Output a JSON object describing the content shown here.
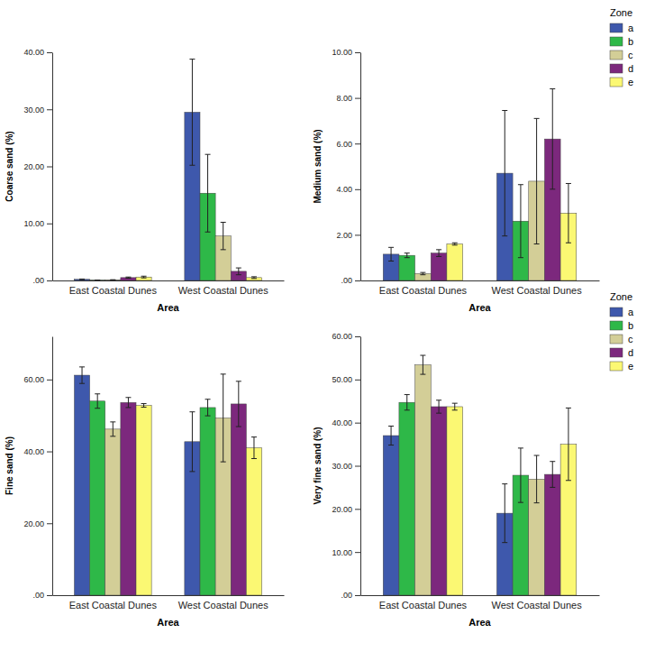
{
  "chart_data": [
    {
      "type": "bar",
      "categories": [
        "East Coastal Dunes",
        "West Coastal Dunes"
      ],
      "x_label": "Area",
      "y_label": "Coarse sand (%)",
      "ylim": [
        0,
        40
      ],
      "yticks": [
        {
          "value": 0,
          "label": ".00"
        },
        {
          "value": 10,
          "label": "10.00"
        },
        {
          "value": 20,
          "label": "20.00"
        },
        {
          "value": 30,
          "label": "30.00"
        },
        {
          "value": 40,
          "label": "40.00"
        }
      ],
      "series": [
        {
          "name": "a",
          "color": "#3e58ac",
          "values": [
            0.2,
            29.5
          ],
          "errors": [
            0.05,
            9.3
          ]
        },
        {
          "name": "b",
          "color": "#2eb848",
          "values": [
            0.05,
            15.3
          ],
          "errors": [
            0.02,
            6.8
          ]
        },
        {
          "name": "c",
          "color": "#d3ce97",
          "values": [
            0.1,
            7.8
          ],
          "errors": [
            0.03,
            2.4
          ]
        },
        {
          "name": "d",
          "color": "#7c287d",
          "values": [
            0.5,
            1.6
          ],
          "errors": [
            0.1,
            0.6
          ]
        },
        {
          "name": "e",
          "color": "#fbf873",
          "values": [
            0.6,
            0.5
          ],
          "errors": [
            0.15,
            0.15
          ]
        }
      ]
    },
    {
      "type": "bar",
      "categories": [
        "East Coastal Dunes",
        "West Coastal Dunes"
      ],
      "x_label": "Area",
      "y_label": "Medium sand (%)",
      "ylim": [
        0,
        10
      ],
      "yticks": [
        {
          "value": 0,
          "label": ".00"
        },
        {
          "value": 2,
          "label": "2.00"
        },
        {
          "value": 4,
          "label": "4.00"
        },
        {
          "value": 6,
          "label": "6.00"
        },
        {
          "value": 8,
          "label": "8.00"
        },
        {
          "value": 10,
          "label": "10.00"
        }
      ],
      "legend": "right",
      "legend_title": "Zone",
      "series": [
        {
          "name": "a",
          "color": "#3e58ac",
          "values": [
            1.15,
            4.7
          ],
          "errors": [
            0.3,
            2.75
          ]
        },
        {
          "name": "b",
          "color": "#2eb848",
          "values": [
            1.1,
            2.6
          ],
          "errors": [
            0.1,
            1.6
          ]
        },
        {
          "name": "c",
          "color": "#d3ce97",
          "values": [
            0.3,
            4.35
          ],
          "errors": [
            0.05,
            2.75
          ]
        },
        {
          "name": "d",
          "color": "#7c287d",
          "values": [
            1.2,
            6.2
          ],
          "errors": [
            0.15,
            2.2
          ]
        },
        {
          "name": "e",
          "color": "#fbf873",
          "values": [
            1.6,
            2.95
          ],
          "errors": [
            0.05,
            1.3
          ]
        }
      ]
    },
    {
      "type": "bar",
      "categories": [
        "East Coastal Dunes",
        "West Coastal Dunes"
      ],
      "x_label": "Area",
      "y_label": "Fine sand (%)",
      "ylim": [
        0,
        72
      ],
      "yticks": [
        {
          "value": 0,
          "label": ".00"
        },
        {
          "value": 20,
          "label": "20.00"
        },
        {
          "value": 40,
          "label": "40.00"
        },
        {
          "value": 60,
          "label": "60.00"
        }
      ],
      "series": [
        {
          "name": "a",
          "color": "#3e58ac",
          "values": [
            61.2,
            42.7
          ],
          "errors": [
            2.3,
            8.3
          ]
        },
        {
          "name": "b",
          "color": "#2eb848",
          "values": [
            54,
            52.2
          ],
          "errors": [
            2,
            2.3
          ]
        },
        {
          "name": "c",
          "color": "#d3ce97",
          "values": [
            46.2,
            49.3
          ],
          "errors": [
            2,
            12.2
          ]
        },
        {
          "name": "d",
          "color": "#7c287d",
          "values": [
            53.6,
            53.2
          ],
          "errors": [
            1.4,
            6.3
          ]
        },
        {
          "name": "e",
          "color": "#fbf873",
          "values": [
            52.8,
            41
          ],
          "errors": [
            0.5,
            3
          ]
        }
      ]
    },
    {
      "type": "bar",
      "categories": [
        "East Coastal Dunes",
        "West Coastal Dunes"
      ],
      "x_label": "Area",
      "y_label": "Very fine sand (%)",
      "ylim": [
        0,
        60
      ],
      "yticks": [
        {
          "value": 0,
          "label": ".00"
        },
        {
          "value": 10,
          "label": "10.00"
        },
        {
          "value": 20,
          "label": "20.00"
        },
        {
          "value": 30,
          "label": "30.00"
        },
        {
          "value": 40,
          "label": "40.00"
        },
        {
          "value": 50,
          "label": "50.00"
        },
        {
          "value": 60,
          "label": "60.00"
        }
      ],
      "legend": "right",
      "legend_title": "Zone",
      "series": [
        {
          "name": "a",
          "color": "#3e58ac",
          "values": [
            37,
            19
          ],
          "errors": [
            2.2,
            6.8
          ]
        },
        {
          "name": "b",
          "color": "#2eb848",
          "values": [
            44.7,
            27.8
          ],
          "errors": [
            1.8,
            6.3
          ]
        },
        {
          "name": "c",
          "color": "#d3ce97",
          "values": [
            53.4,
            26.9
          ],
          "errors": [
            2.2,
            5.5
          ]
        },
        {
          "name": "d",
          "color": "#7c287d",
          "values": [
            43.7,
            28
          ],
          "errors": [
            1.5,
            3
          ]
        },
        {
          "name": "e",
          "color": "#fbf873",
          "values": [
            43.7,
            35
          ],
          "errors": [
            0.8,
            8.4
          ]
        }
      ]
    }
  ]
}
